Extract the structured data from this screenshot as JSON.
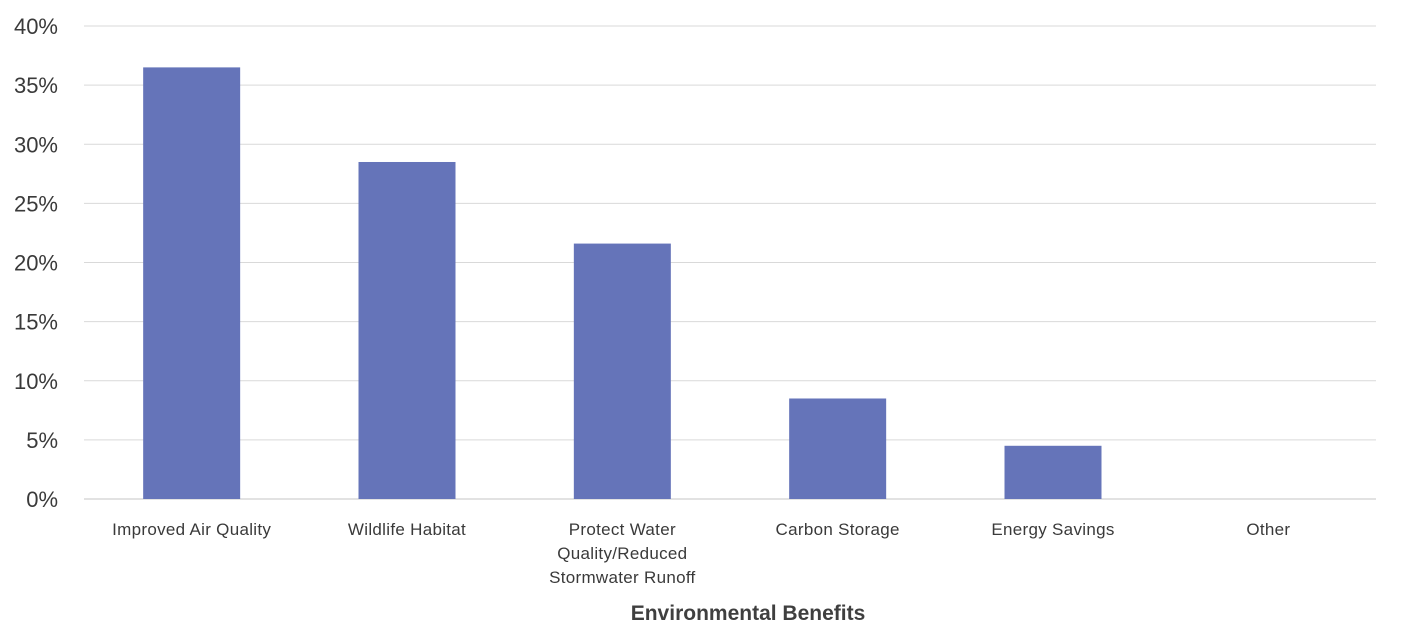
{
  "chart_data": {
    "type": "bar",
    "title": "",
    "xlabel": "Environmental Benefits",
    "ylabel": "",
    "categories": [
      "Improved Air Quality",
      "Wildlife Habitat",
      "Protect Water Quality/Reduced Stormwater Runoff",
      "Carbon Storage",
      "Energy Savings",
      "Other"
    ],
    "category_label_lines": [
      [
        "Improved Air Quality"
      ],
      [
        "Wildlife Habitat"
      ],
      [
        "Protect Water",
        "Quality/Reduced",
        "Stormwater Runoff"
      ],
      [
        "Carbon Storage"
      ],
      [
        "Energy Savings"
      ],
      [
        "Other"
      ]
    ],
    "values": [
      36.5,
      28.5,
      21.6,
      8.5,
      4.5,
      0
    ],
    "ylim": [
      0,
      40
    ],
    "yticks": [
      0,
      5,
      10,
      15,
      20,
      25,
      30,
      35,
      40
    ],
    "ytick_labels": [
      "0%",
      "5%",
      "10%",
      "15%",
      "20%",
      "25%",
      "30%",
      "35%",
      "40%"
    ],
    "grid": true,
    "legend": "none",
    "bar_color": "#6574b9",
    "grid_color": "#d9d9d9"
  }
}
